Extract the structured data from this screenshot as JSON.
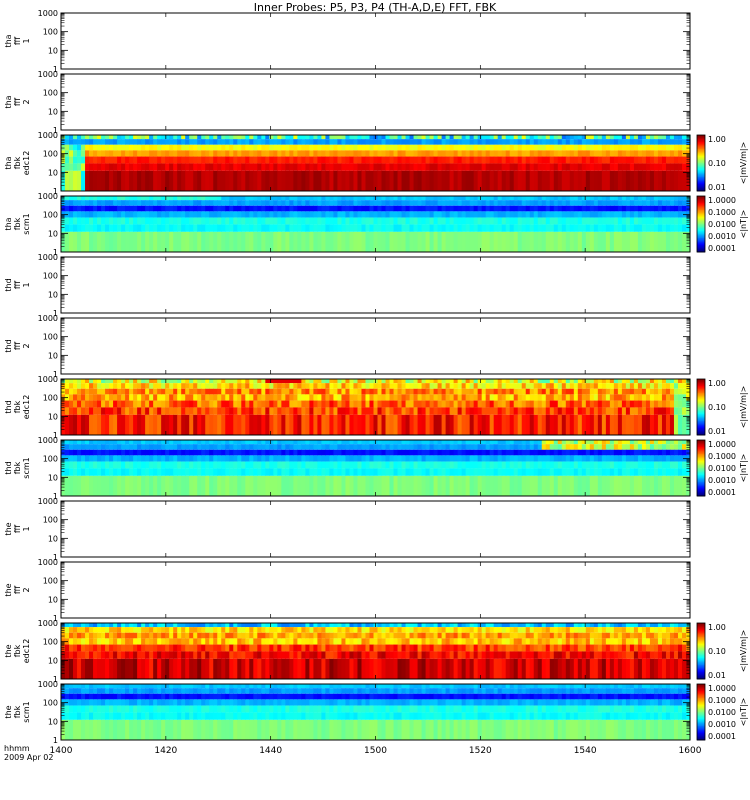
{
  "page": {
    "title": "Inner Probes: P5, P3, P4 (TH-A,D,E) FFT, FBK",
    "time_label": "hhmm",
    "date_label": "2009 Apr 02"
  },
  "chart_data": {
    "type": "heatmap",
    "title": "Inner Probes: P5, P3, P4 (TH-A,D,E) FFT, FBK",
    "x": {
      "label": "hhmm",
      "sublabel": "2009 Apr 02",
      "range": [
        1400,
        1600
      ],
      "ticks": [
        "1400",
        "1420",
        "1440",
        "1500",
        "1520",
        "1540",
        "1600"
      ],
      "tick_minutes": [
        0,
        20,
        40,
        60,
        80,
        100,
        120
      ]
    },
    "y": {
      "scale": "log",
      "range": [
        1,
        1000
      ],
      "ticks": [
        "1",
        "10",
        "100",
        "1000"
      ]
    },
    "colorbars": {
      "edc12": {
        "label": "<|mV/m|>",
        "scale": "log",
        "ticks": [
          "1.00",
          "0.10",
          "0.01"
        ]
      },
      "scm1": {
        "label": "<|nT|>",
        "scale": "log",
        "ticks": [
          "1.0000",
          "0.1000",
          "0.0100",
          "0.0010",
          "0.0001"
        ]
      }
    },
    "panels": [
      {
        "probe": "tha",
        "ylabel": [
          "tha",
          "fff",
          "1"
        ],
        "kind": "empty"
      },
      {
        "probe": "tha",
        "ylabel": [
          "tha",
          "fff",
          "2"
        ],
        "kind": "empty"
      },
      {
        "probe": "tha",
        "ylabel": [
          "tha",
          "fbk",
          "edc12"
        ],
        "kind": "edc12",
        "colorbar": "edc12"
      },
      {
        "probe": "tha",
        "ylabel": [
          "tha",
          "fbk",
          "scm1"
        ],
        "kind": "scm1",
        "colorbar": "scm1"
      },
      {
        "probe": "thd",
        "ylabel": [
          "thd",
          "fff",
          "1"
        ],
        "kind": "empty"
      },
      {
        "probe": "thd",
        "ylabel": [
          "thd",
          "fff",
          "2"
        ],
        "kind": "empty"
      },
      {
        "probe": "thd",
        "ylabel": [
          "thd",
          "fbk",
          "edc12"
        ],
        "kind": "edc12",
        "colorbar": "edc12"
      },
      {
        "probe": "thd",
        "ylabel": [
          "thd",
          "fbk",
          "scm1"
        ],
        "kind": "scm1",
        "colorbar": "scm1"
      },
      {
        "probe": "the",
        "ylabel": [
          "the",
          "fff",
          "1"
        ],
        "kind": "empty"
      },
      {
        "probe": "the",
        "ylabel": [
          "the",
          "fff",
          "2"
        ],
        "kind": "empty"
      },
      {
        "probe": "the",
        "ylabel": [
          "the",
          "fbk",
          "edc12"
        ],
        "kind": "edc12",
        "colorbar": "edc12"
      },
      {
        "probe": "the",
        "ylabel": [
          "the",
          "fbk",
          "scm1"
        ],
        "kind": "scm1",
        "colorbar": "scm1"
      }
    ]
  }
}
